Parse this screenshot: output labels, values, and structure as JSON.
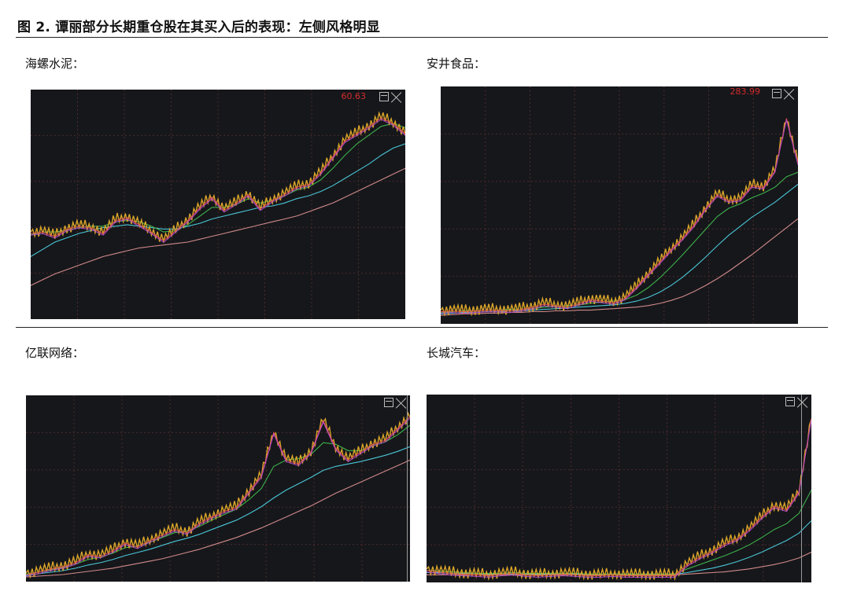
{
  "figure": {
    "title": "图 2. 谭丽部分长期重仓股在其买入后的表现：左侧风格明显"
  },
  "colors": {
    "background": "#16171b",
    "grid": "#4a2a2a",
    "price": "#d9a52a",
    "ma_fast": "#e05050",
    "ma_mid": "#b048c8",
    "ma_slow1": "#3cb14a",
    "ma_slow2": "#49c6d6",
    "ma_slowest": "#d18a8a"
  },
  "chart_data": [
    {
      "type": "line",
      "label": "海螺水泥：",
      "price_tag": "60.63",
      "series": [
        {
          "key": "price",
          "values": [
            57,
            58,
            55,
            60,
            62,
            61,
            57,
            66,
            68,
            63,
            58,
            52,
            59,
            66,
            75,
            82,
            73,
            78,
            84,
            74,
            80,
            84,
            89,
            91,
            99,
            110,
            121,
            126,
            131,
            137,
            133,
            126
          ]
        },
        {
          "key": "ma_slow1",
          "values": [
            55,
            57,
            57,
            58,
            60,
            61,
            61,
            64,
            65,
            64,
            61,
            57,
            58,
            62,
            68,
            74,
            74,
            76,
            80,
            77,
            79,
            82,
            86,
            88,
            93,
            101,
            110,
            118,
            124,
            130,
            132,
            129
          ]
        },
        {
          "key": "ma_slow2",
          "values": [
            40,
            45,
            50,
            53,
            56,
            58,
            60,
            61,
            62,
            61,
            60,
            59,
            59,
            61,
            63,
            66,
            68,
            70,
            72,
            74,
            75,
            77,
            80,
            82,
            85,
            89,
            94,
            99,
            104,
            110,
            115,
            118
          ]
        },
        {
          "key": "ma_slowest",
          "values": [
            20,
            24,
            28,
            31,
            34,
            37,
            40,
            42,
            44,
            46,
            47,
            48,
            49,
            50,
            52,
            54,
            56,
            58,
            60,
            62,
            64,
            66,
            68,
            71,
            74,
            77,
            81,
            85,
            89,
            93,
            97,
            101
          ]
        }
      ],
      "ylim": [
        0,
        150
      ]
    },
    {
      "type": "line",
      "label": "安井食品：",
      "price_tag": "283.99",
      "series": [
        {
          "key": "price",
          "values": [
            12,
            13,
            12,
            13,
            14,
            14,
            13,
            15,
            18,
            22,
            20,
            18,
            23,
            28,
            26,
            24,
            30,
            45,
            62,
            78,
            95,
            110,
            128,
            150,
            168,
            160,
            162,
            180,
            178,
            200,
            270,
            210
          ]
        },
        {
          "key": "ma_slow1",
          "values": [
            9,
            10,
            11,
            11,
            12,
            12,
            13,
            13,
            14,
            16,
            17,
            18,
            19,
            21,
            23,
            24,
            26,
            32,
            42,
            55,
            70,
            86,
            103,
            120,
            137,
            148,
            154,
            162,
            168,
            176,
            190,
            196
          ]
        },
        {
          "key": "ma_slow2",
          "values": [
            7,
            8,
            9,
            9,
            10,
            10,
            11,
            11,
            12,
            13,
            14,
            15,
            16,
            17,
            18,
            19,
            21,
            24,
            29,
            36,
            45,
            56,
            69,
            83,
            98,
            112,
            124,
            136,
            146,
            156,
            168,
            180
          ]
        },
        {
          "key": "ma_slowest",
          "values": [
            5,
            6,
            7,
            7,
            8,
            8,
            9,
            9,
            10,
            10,
            11,
            11,
            12,
            12,
            13,
            14,
            15,
            16,
            18,
            21,
            25,
            30,
            37,
            45,
            54,
            64,
            75,
            86,
            98,
            110,
            122,
            134
          ]
        }
      ],
      "ylim": [
        0,
        300
      ]
    },
    {
      "type": "line",
      "label": "亿联网络：",
      "price_tag": "",
      "series": [
        {
          "key": "price",
          "values": [
            5,
            8,
            12,
            15,
            20,
            30,
            28,
            35,
            45,
            40,
            48,
            55,
            62,
            58,
            70,
            78,
            85,
            90,
            110,
            130,
            185,
            150,
            145,
            160,
            200,
            165,
            150,
            160,
            170,
            175,
            190,
            205
          ]
        },
        {
          "key": "ma_slow1",
          "values": [
            4,
            6,
            9,
            12,
            16,
            22,
            25,
            30,
            37,
            39,
            44,
            50,
            56,
            58,
            64,
            72,
            79,
            86,
            98,
            112,
            140,
            148,
            150,
            155,
            170,
            168,
            160,
            160,
            166,
            171,
            180,
            192
          ]
        },
        {
          "key": "ma_slow2",
          "values": [
            2,
            4,
            6,
            8,
            11,
            15,
            18,
            22,
            27,
            31,
            35,
            40,
            45,
            49,
            54,
            60,
            66,
            72,
            80,
            89,
            100,
            110,
            118,
            126,
            135,
            140,
            143,
            146,
            150,
            154,
            159,
            165
          ]
        },
        {
          "key": "ma_slowest",
          "values": [
            0,
            1,
            2,
            3,
            5,
            7,
            9,
            11,
            14,
            17,
            20,
            23,
            27,
            31,
            35,
            40,
            45,
            50,
            56,
            62,
            69,
            76,
            83,
            90,
            98,
            106,
            113,
            120,
            127,
            134,
            141,
            148
          ]
        }
      ],
      "ylim": [
        0,
        220
      ]
    },
    {
      "type": "line",
      "label": "长城汽车：",
      "price_tag": "",
      "series": [
        {
          "key": "price",
          "values": [
            12,
            10,
            8,
            7,
            6,
            5,
            7,
            8,
            6,
            5,
            6,
            7,
            6,
            5,
            5,
            6,
            5,
            5,
            5,
            5,
            5,
            20,
            30,
            38,
            48,
            55,
            68,
            85,
            100,
            95,
            120,
            220
          ]
        },
        {
          "key": "ma_slow1",
          "values": [
            10,
            9,
            8,
            7,
            6,
            6,
            6,
            7,
            6,
            6,
            6,
            6,
            6,
            5,
            5,
            5,
            5,
            5,
            5,
            5,
            5,
            12,
            18,
            24,
            30,
            37,
            45,
            55,
            66,
            74,
            88,
            120
          ]
        },
        {
          "key": "ma_slow2",
          "values": [
            7,
            7,
            6,
            6,
            6,
            5,
            5,
            5,
            5,
            5,
            5,
            5,
            5,
            5,
            5,
            5,
            5,
            5,
            5,
            5,
            5,
            7,
            10,
            13,
            17,
            22,
            28,
            35,
            43,
            51,
            61,
            78
          ]
        },
        {
          "key": "ma_slowest",
          "values": [
            4,
            4,
            4,
            4,
            4,
            4,
            4,
            4,
            4,
            4,
            4,
            4,
            4,
            4,
            4,
            4,
            4,
            4,
            4,
            4,
            4,
            5,
            6,
            7,
            8,
            10,
            12,
            15,
            18,
            22,
            27,
            35
          ]
        }
      ],
      "ylim": [
        0,
        240
      ]
    }
  ]
}
